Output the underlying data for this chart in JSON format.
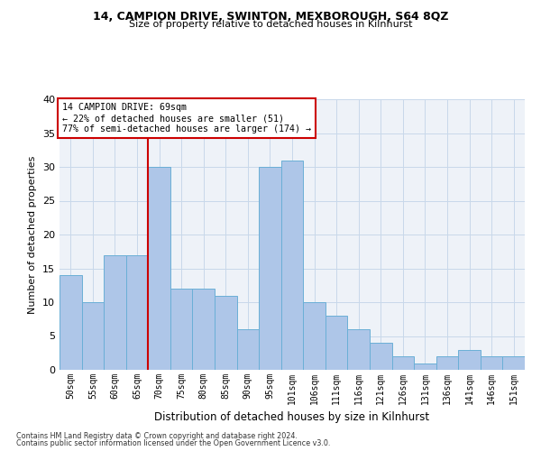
{
  "title1": "14, CAMPION DRIVE, SWINTON, MEXBOROUGH, S64 8QZ",
  "title2": "Size of property relative to detached houses in Kilnhurst",
  "xlabel": "Distribution of detached houses by size in Kilnhurst",
  "ylabel": "Number of detached properties",
  "footnote1": "Contains HM Land Registry data © Crown copyright and database right 2024.",
  "footnote2": "Contains public sector information licensed under the Open Government Licence v3.0.",
  "categories": [
    "50sqm",
    "55sqm",
    "60sqm",
    "65sqm",
    "70sqm",
    "75sqm",
    "80sqm",
    "85sqm",
    "90sqm",
    "95sqm",
    "101sqm",
    "106sqm",
    "111sqm",
    "116sqm",
    "121sqm",
    "126sqm",
    "131sqm",
    "136sqm",
    "141sqm",
    "146sqm",
    "151sqm"
  ],
  "values": [
    14,
    10,
    17,
    17,
    30,
    12,
    12,
    11,
    6,
    30,
    31,
    10,
    8,
    6,
    4,
    2,
    1,
    2,
    3,
    2,
    2
  ],
  "bar_color": "#aec6e8",
  "bar_edge_color": "#6aafd6",
  "reference_line_x": 3.5,
  "reference_line_color": "#cc0000",
  "annotation_title": "14 CAMPION DRIVE: 69sqm",
  "annotation_line1": "← 22% of detached houses are smaller (51)",
  "annotation_line2": "77% of semi-detached houses are larger (174) →",
  "annotation_box_color": "#cc0000",
  "ylim": [
    0,
    40
  ],
  "yticks": [
    0,
    5,
    10,
    15,
    20,
    25,
    30,
    35,
    40
  ],
  "grid_color": "#c8d8ea",
  "bg_color": "#eef2f8"
}
